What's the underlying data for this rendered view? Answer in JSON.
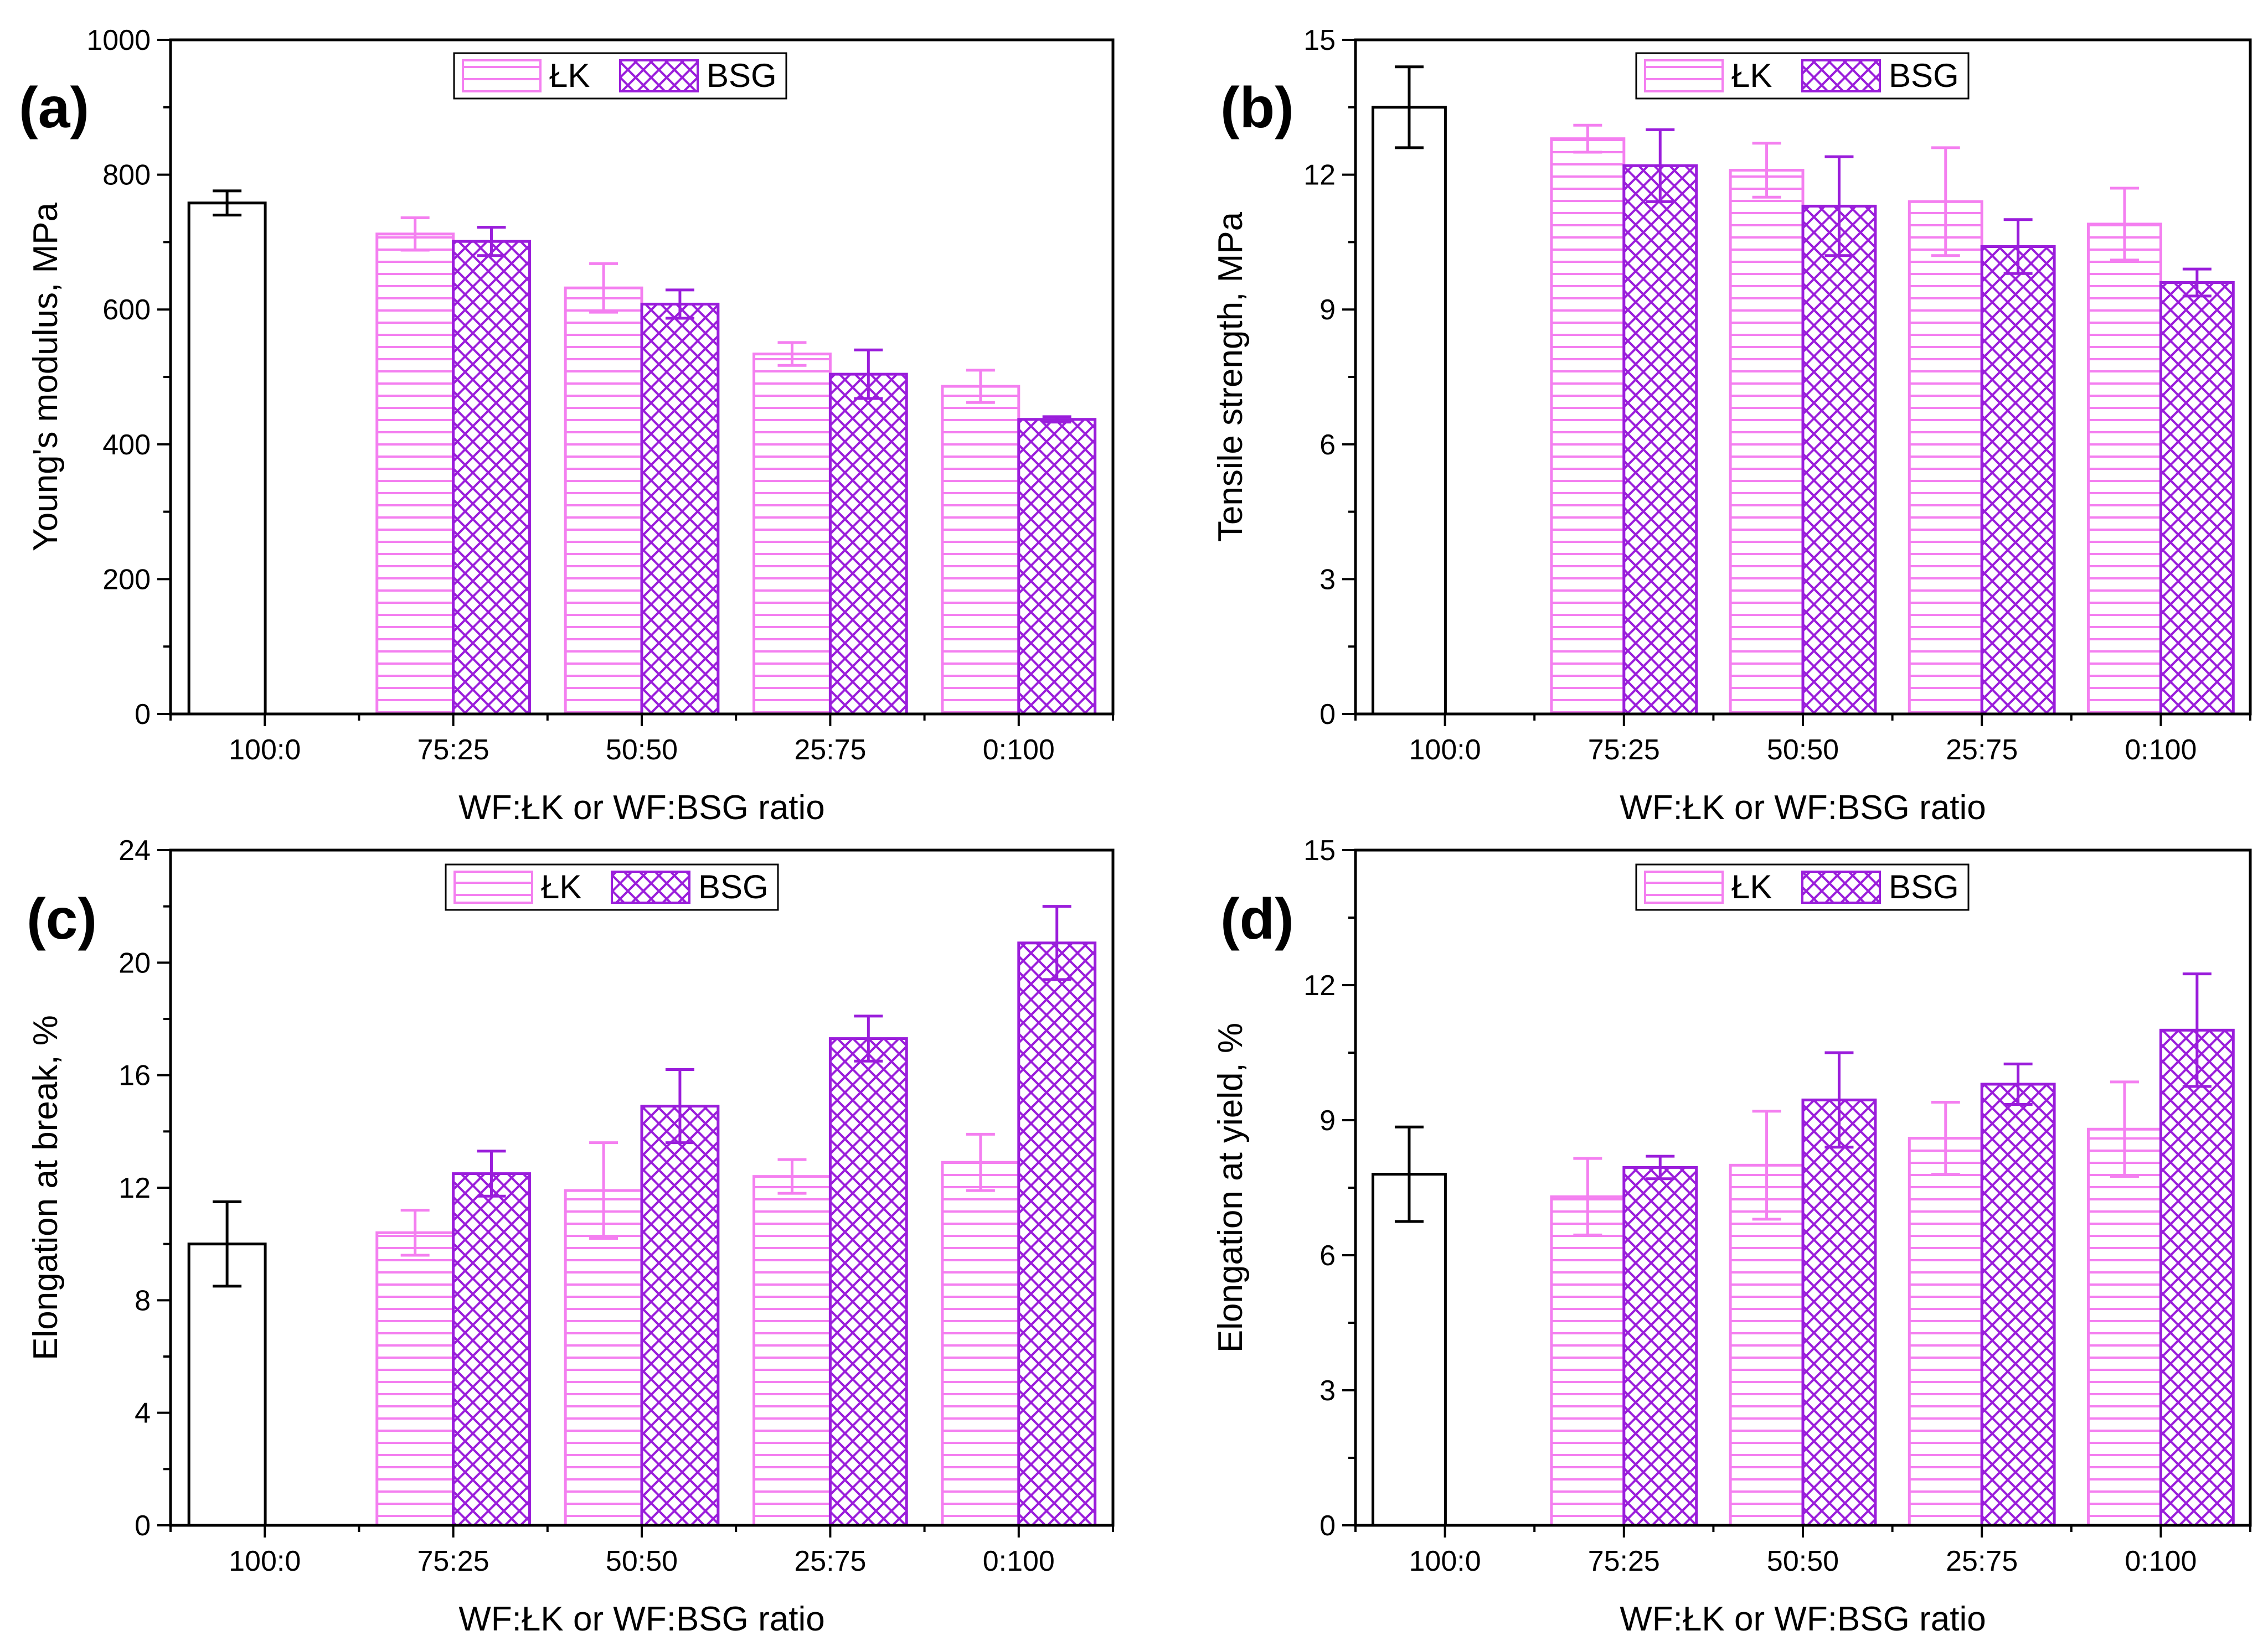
{
  "colors": {
    "control": "#000000",
    "lk": "#f47ff0",
    "bsg": "#9a1ddb",
    "frame": "#000000"
  },
  "chart_data": [
    {
      "type": "bar",
      "panel": "(a)",
      "categories": [
        "100:0",
        "75:25",
        "50:50",
        "25:75",
        "0:100"
      ],
      "xlabel": "WF:ŁK or WF:BSG ratio",
      "ylabel": "Young's modulus, MPa",
      "ylim": [
        0,
        1000
      ],
      "yticks": [
        "0",
        "200",
        "400",
        "600",
        "800",
        "1000"
      ],
      "legend": [
        "ŁK",
        "BSG"
      ],
      "legend_position": "top-center",
      "control": {
        "category": "100:0",
        "value": 758,
        "error": 18
      },
      "series": [
        {
          "name": "ŁK",
          "pattern": "horizontal-lines",
          "values": [
            null,
            712,
            632,
            534,
            486
          ],
          "errors": [
            null,
            24,
            36,
            17,
            24
          ]
        },
        {
          "name": "BSG",
          "pattern": "crosshatch",
          "values": [
            null,
            701,
            608,
            504,
            437
          ],
          "errors": [
            null,
            21,
            21,
            36,
            4
          ]
        }
      ]
    },
    {
      "type": "bar",
      "panel": "(b)",
      "categories": [
        "100:0",
        "75:25",
        "50:50",
        "25:75",
        "0:100"
      ],
      "xlabel": "WF:ŁK or WF:BSG ratio",
      "ylabel": "Tensile strength, MPa",
      "ylim": [
        0,
        15
      ],
      "yticks": [
        "0",
        "3",
        "6",
        "9",
        "12",
        "15"
      ],
      "legend": [
        "ŁK",
        "BSG"
      ],
      "legend_position": "top-center",
      "control": {
        "category": "100:0",
        "value": 13.5,
        "error": 0.9
      },
      "series": [
        {
          "name": "ŁK",
          "pattern": "horizontal-lines",
          "values": [
            null,
            12.8,
            12.1,
            11.4,
            10.9
          ],
          "errors": [
            null,
            0.3,
            0.6,
            1.2,
            0.8
          ]
        },
        {
          "name": "BSG",
          "pattern": "crosshatch",
          "values": [
            null,
            12.2,
            11.3,
            10.4,
            9.6
          ],
          "errors": [
            null,
            0.8,
            1.1,
            0.6,
            0.3
          ]
        }
      ]
    },
    {
      "type": "bar",
      "panel": "(c)",
      "categories": [
        "100:0",
        "75:25",
        "50:50",
        "25:75",
        "0:100"
      ],
      "xlabel": "WF:ŁK or WF:BSG ratio",
      "ylabel": "Elongation at break, %",
      "ylim": [
        0,
        24
      ],
      "yticks": [
        "0",
        "4",
        "8",
        "12",
        "16",
        "20",
        "24"
      ],
      "legend": [
        "ŁK",
        "BSG"
      ],
      "legend_position": "top-center",
      "control": {
        "category": "100:0",
        "value": 10.0,
        "error": 1.5
      },
      "series": [
        {
          "name": "ŁK",
          "pattern": "horizontal-lines",
          "values": [
            null,
            10.4,
            11.9,
            12.4,
            12.9
          ],
          "errors": [
            null,
            0.8,
            1.7,
            0.6,
            1.0
          ]
        },
        {
          "name": "BSG",
          "pattern": "crosshatch",
          "values": [
            null,
            12.5,
            14.9,
            17.3,
            20.7
          ],
          "errors": [
            null,
            0.8,
            1.3,
            0.8,
            1.3
          ]
        }
      ]
    },
    {
      "type": "bar",
      "panel": "(d)",
      "categories": [
        "100:0",
        "75:25",
        "50:50",
        "25:75",
        "0:100"
      ],
      "xlabel": "WF:ŁK or WF:BSG ratio",
      "ylabel": "Elongation at yield, %",
      "ylim": [
        0,
        15
      ],
      "yticks": [
        "0",
        "3",
        "6",
        "9",
        "12",
        "15"
      ],
      "legend": [
        "ŁK",
        "BSG"
      ],
      "legend_position": "top-center",
      "control": {
        "category": "100:0",
        "value": 7.8,
        "error": 1.05
      },
      "series": [
        {
          "name": "ŁK",
          "pattern": "horizontal-lines",
          "values": [
            null,
            7.3,
            8.0,
            8.6,
            8.8
          ],
          "errors": [
            null,
            0.85,
            1.2,
            0.8,
            1.05
          ]
        },
        {
          "name": "BSG",
          "pattern": "crosshatch",
          "values": [
            null,
            7.95,
            9.45,
            9.8,
            11.0
          ],
          "errors": [
            null,
            0.25,
            1.05,
            0.45,
            1.25
          ]
        }
      ]
    }
  ]
}
